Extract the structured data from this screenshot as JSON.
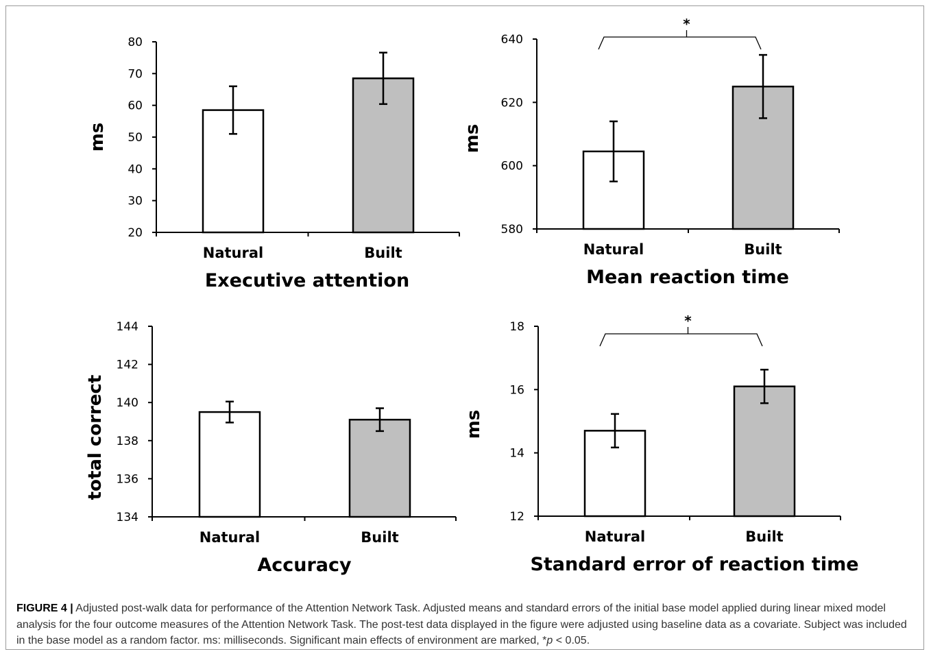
{
  "caption": {
    "label": "FIGURE 4 |",
    "text_1": " Adjusted post-walk data for performance of the Attention Network Task. Adjusted means and standard errors of the initial base model applied during linear mixed model analysis for the four outcome measures of the Attention Network Task. The post-test data displayed in the figure were adjusted using baseline data as a covariate. Subject was included in the base model as a random factor. ms: milliseconds. Significant main effects of environment are marked, *",
    "p_symbol": "p",
    "text_2": " < 0.05."
  },
  "chart_data": [
    {
      "type": "bar",
      "title": "Executive attention",
      "ylabel": "ms",
      "categories": [
        "Natural",
        "Built"
      ],
      "values": [
        58.5,
        68.5
      ],
      "errors": [
        7.5,
        8.1
      ],
      "ylim": [
        20,
        80
      ],
      "yticks": [
        "20",
        "30",
        "40",
        "50",
        "60",
        "70",
        "80"
      ],
      "colors": [
        "#ffffff",
        "#bfbfbf"
      ],
      "significance": null
    },
    {
      "type": "bar",
      "title": "Mean reaction time",
      "ylabel": "ms",
      "categories": [
        "Natural",
        "Built"
      ],
      "values": [
        604.5,
        625
      ],
      "errors": [
        9.5,
        10
      ],
      "ylim": [
        580,
        640
      ],
      "yticks": [
        "580",
        "600",
        "620",
        "640"
      ],
      "colors": [
        "#ffffff",
        "#bfbfbf"
      ],
      "significance": "*"
    },
    {
      "type": "bar",
      "title": "Accuracy",
      "ylabel": "total correct",
      "categories": [
        "Natural",
        "Built"
      ],
      "values": [
        139.5,
        139.1
      ],
      "errors": [
        0.55,
        0.6
      ],
      "ylim": [
        134,
        144
      ],
      "yticks": [
        "134",
        "136",
        "138",
        "140",
        "142",
        "144"
      ],
      "colors": [
        "#ffffff",
        "#bfbfbf"
      ],
      "significance": null
    },
    {
      "type": "bar",
      "title": "Standard error of reaction time",
      "ylabel": "ms",
      "categories": [
        "Natural",
        "Built"
      ],
      "values": [
        14.7,
        16.1
      ],
      "errors": [
        0.53,
        0.53
      ],
      "ylim": [
        12,
        18
      ],
      "yticks": [
        "12",
        "14",
        "16",
        "18"
      ],
      "colors": [
        "#ffffff",
        "#bfbfbf"
      ],
      "significance": "*"
    }
  ]
}
